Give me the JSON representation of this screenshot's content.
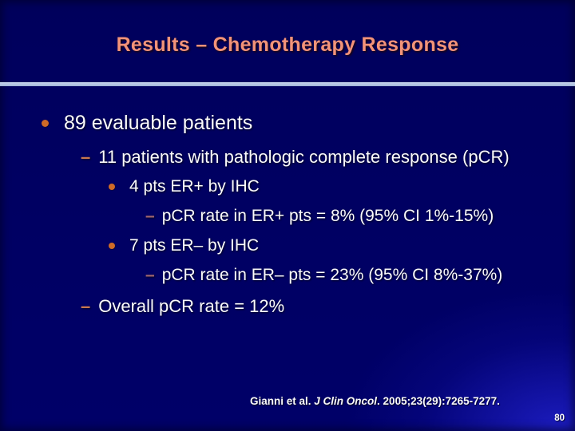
{
  "slide": {
    "title": "Results – Chemotherapy Response",
    "bullets": [
      {
        "level": 1,
        "marker": "dot",
        "text": "89 evaluable patients"
      },
      {
        "level": 2,
        "marker": "dash",
        "text": "11 patients with pathologic complete response (pCR)"
      },
      {
        "level": 3,
        "marker": "dot",
        "text": "4 pts ER+ by IHC"
      },
      {
        "level": 4,
        "marker": "dash",
        "text": "pCR rate in ER+ pts = 8% (95% CI 1%-15%)"
      },
      {
        "level": 3,
        "marker": "dot",
        "text": "7 pts ER– by IHC"
      },
      {
        "level": 4,
        "marker": "dash",
        "text": "pCR rate in ER– pts = 23% (95% CI 8%-37%)"
      },
      {
        "level": 2,
        "marker": "dash",
        "text": "Overall pCR rate = 12%"
      }
    ],
    "markers": {
      "dash_glyph": "–"
    },
    "citation": {
      "prefix": "Gianni et al. ",
      "journal": "J Clin Oncol",
      "suffix": ". 2005;23(29):7265-7277."
    },
    "page_number": "80",
    "colors": {
      "background_navy": "#000063",
      "background_glow": "#1c1cc0",
      "title_salmon": "#F29379",
      "divider_light_blue": "#B3C4E2",
      "bullet_dot_orange": "#CE6A28",
      "dash_salmon": "#C87850",
      "dash_mauve": "#A3686E",
      "body_text": "#FBFBFB"
    }
  }
}
